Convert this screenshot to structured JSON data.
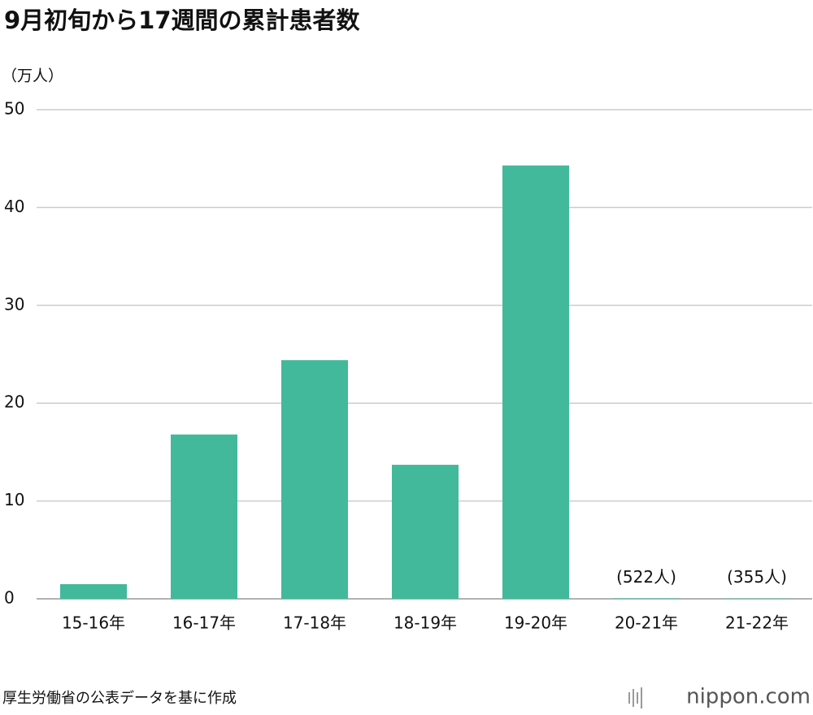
{
  "chart_data": {
    "type": "bar",
    "title": "9月初旬から17週間の累計患者数",
    "y_axis_label": "（万人）",
    "categories": [
      "15-16年",
      "16-17年",
      "17-18年",
      "18-19年",
      "19-20年",
      "20-21年",
      "21-22年"
    ],
    "values": [
      1.5,
      16.8,
      24.4,
      13.7,
      44.3,
      0.0522,
      0.0355
    ],
    "value_labels": [
      null,
      null,
      null,
      null,
      null,
      "(522人)",
      "(355人)"
    ],
    "color": "#42b99b",
    "ylim": [
      0,
      50
    ],
    "yticks": [
      0,
      10,
      20,
      30,
      40,
      50
    ],
    "grid": true,
    "source": "厚生労働省の公表データを基に作成",
    "brand": "nippon.com"
  }
}
